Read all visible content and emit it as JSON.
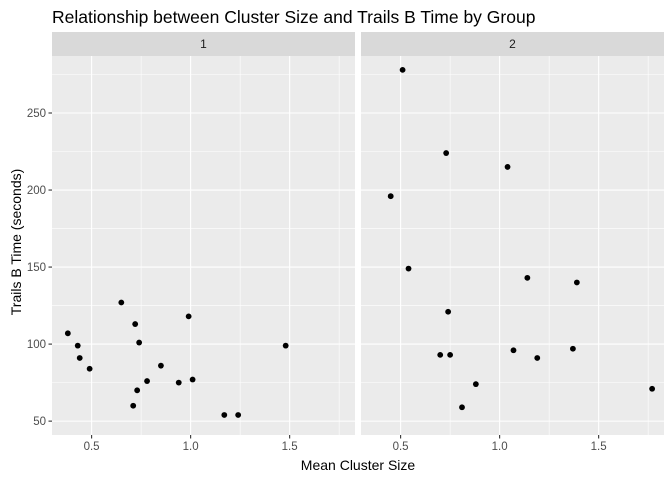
{
  "chart_data": {
    "type": "scatter",
    "title": "Relationship between Cluster Size and Trails B Time by Group",
    "xlabel": "Mean Cluster Size",
    "ylabel": "Trails B Time (seconds)",
    "xlim": [
      0.3,
      1.83
    ],
    "ylim": [
      41,
      287
    ],
    "x_ticks": [
      0.5,
      1.0,
      1.5
    ],
    "x_tick_labels": [
      "0.5",
      "1.0",
      "1.5"
    ],
    "y_ticks": [
      50,
      100,
      150,
      200,
      250
    ],
    "y_tick_labels": [
      "50",
      "100",
      "150",
      "200",
      "250"
    ],
    "grid": true,
    "panel_background": "#EBEBEB",
    "strip_background": "#D9D9D9",
    "grid_color": "#FFFFFF",
    "point_color": "#000000",
    "facets": [
      {
        "label": "1",
        "points": [
          {
            "x": 0.38,
            "y": 107
          },
          {
            "x": 0.43,
            "y": 99
          },
          {
            "x": 0.44,
            "y": 91
          },
          {
            "x": 0.49,
            "y": 84
          },
          {
            "x": 0.65,
            "y": 127
          },
          {
            "x": 0.71,
            "y": 60
          },
          {
            "x": 0.72,
            "y": 113
          },
          {
            "x": 0.73,
            "y": 70
          },
          {
            "x": 0.74,
            "y": 101
          },
          {
            "x": 0.78,
            "y": 76
          },
          {
            "x": 0.85,
            "y": 86
          },
          {
            "x": 0.94,
            "y": 75
          },
          {
            "x": 0.99,
            "y": 118
          },
          {
            "x": 1.01,
            "y": 77
          },
          {
            "x": 1.17,
            "y": 54
          },
          {
            "x": 1.24,
            "y": 54
          },
          {
            "x": 1.48,
            "y": 99
          }
        ]
      },
      {
        "label": "2",
        "points": [
          {
            "x": 0.45,
            "y": 196
          },
          {
            "x": 0.51,
            "y": 278
          },
          {
            "x": 0.54,
            "y": 149
          },
          {
            "x": 0.7,
            "y": 93
          },
          {
            "x": 0.73,
            "y": 224
          },
          {
            "x": 0.74,
            "y": 121
          },
          {
            "x": 0.75,
            "y": 93
          },
          {
            "x": 0.81,
            "y": 59
          },
          {
            "x": 0.88,
            "y": 74
          },
          {
            "x": 1.04,
            "y": 215
          },
          {
            "x": 1.07,
            "y": 96
          },
          {
            "x": 1.14,
            "y": 143
          },
          {
            "x": 1.19,
            "y": 91
          },
          {
            "x": 1.37,
            "y": 97
          },
          {
            "x": 1.39,
            "y": 140
          },
          {
            "x": 1.77,
            "y": 71
          }
        ]
      }
    ]
  }
}
